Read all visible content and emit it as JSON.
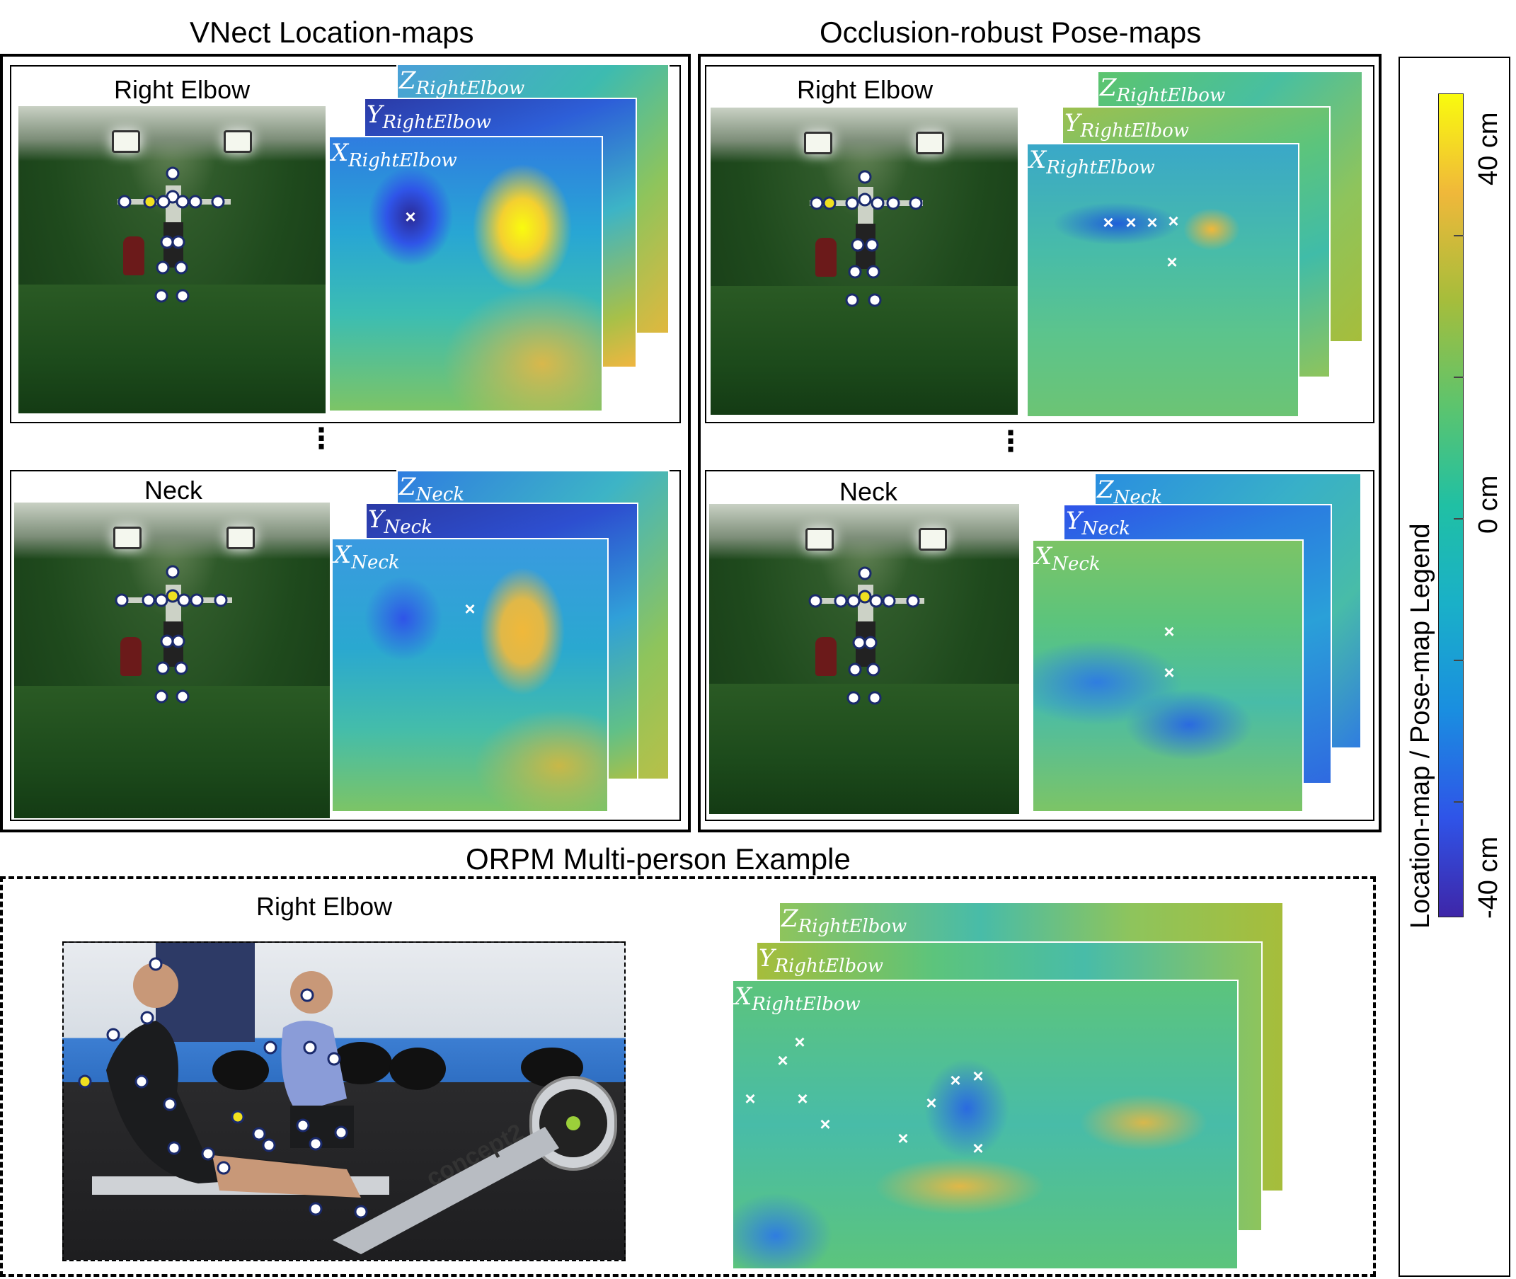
{
  "sections": {
    "vnect_title": "VNect Location-maps",
    "orpm_title": "Occlusion-robust Pose-maps",
    "multi_title": "ORPM Multi-person Example"
  },
  "joints": {
    "right_elbow": "Right Elbow",
    "neck": "Neck"
  },
  "map_labels": {
    "right_elbow": {
      "x": "X",
      "y": "Y",
      "z": "Z",
      "sub": "RightElbow"
    },
    "neck": {
      "x": "X",
      "y": "Y",
      "z": "Z",
      "sub": "Neck"
    }
  },
  "ellipsis": "⋮",
  "legend": {
    "title": "Location-map / Pose-map Legend",
    "max_label": "40 cm",
    "mid_label": "0 cm",
    "min_label": "-40 cm",
    "colors": [
      "#3e26a8",
      "#2f54e8",
      "#1a8ee0",
      "#20c0a4",
      "#a6bd3b",
      "#f0b83a",
      "#f9fb0e"
    ]
  },
  "marker_symbol": "×",
  "gym_brand": "concept2"
}
